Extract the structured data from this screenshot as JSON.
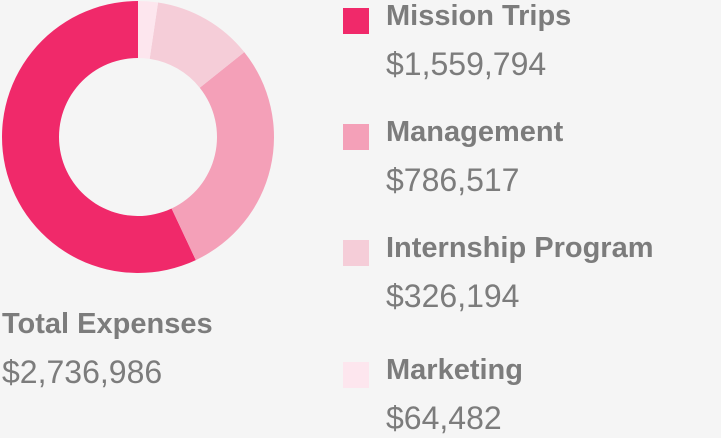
{
  "chart_data": {
    "type": "pie",
    "variant": "donut",
    "categories": [
      "Mission Trips",
      "Management",
      "Internship Program",
      "Marketing"
    ],
    "values": [
      1559794,
      786517,
      326194,
      64482
    ],
    "value_labels": [
      "$1,559,794",
      "$786,517",
      "$326,194",
      "$64,482"
    ],
    "colors": [
      "#f0296a",
      "#f4a0b8",
      "#f5cdd8",
      "#fde6ee"
    ],
    "legend": "right",
    "total": {
      "label": "Total Expenses",
      "value": "$2,736,986"
    }
  }
}
